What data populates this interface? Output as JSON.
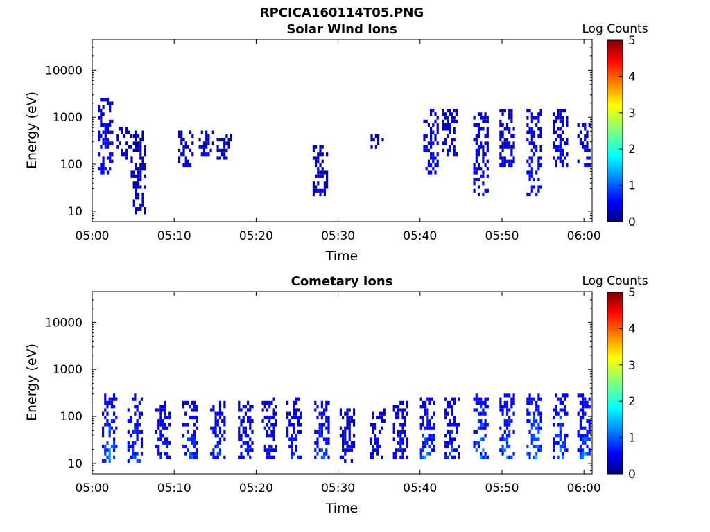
{
  "figure": {
    "title": "RPCICA160114T05.PNG"
  },
  "chart_data": [
    {
      "type": "heatmap",
      "title": "Solar Wind Ions",
      "xlabel": "Time",
      "ylabel": "Energy (eV)",
      "x_ticks": [
        "05:00",
        "05:10",
        "05:20",
        "05:30",
        "05:40",
        "05:50",
        "06:00"
      ],
      "y_ticks": [
        "10",
        "100",
        "1000",
        "10000"
      ],
      "y_scale": "log",
      "x_range": [
        "05:00",
        "06:01"
      ],
      "y_range_eV": [
        6,
        45000
      ],
      "colorbar": {
        "label": "Log Counts",
        "ticks": [
          "0",
          "1",
          "2",
          "3",
          "4",
          "5"
        ],
        "range": [
          0,
          5
        ],
        "colormap": "jet"
      },
      "bursts": [
        {
          "t_min": 1.5,
          "e_low": 60,
          "e_high": 2500,
          "peak": 1.0
        },
        {
          "t_min": 3.8,
          "e_low": 120,
          "e_high": 600,
          "peak": 0.6
        },
        {
          "t_min": 5.5,
          "e_low": 9,
          "e_high": 500,
          "peak": 0.5
        },
        {
          "t_min": 11.3,
          "e_low": 80,
          "e_high": 500,
          "peak": 0.5
        },
        {
          "t_min": 13.8,
          "e_low": 150,
          "e_high": 500,
          "peak": 0.6
        },
        {
          "t_min": 16.0,
          "e_low": 120,
          "e_high": 400,
          "peak": 0.4
        },
        {
          "t_min": 27.7,
          "e_low": 20,
          "e_high": 250,
          "peak": 0.5
        },
        {
          "t_min": 34.5,
          "e_low": 200,
          "e_high": 400,
          "peak": 0.3
        },
        {
          "t_min": 41.2,
          "e_low": 60,
          "e_high": 1500,
          "peak": 0.9
        },
        {
          "t_min": 43.5,
          "e_low": 150,
          "e_high": 1500,
          "peak": 0.8
        },
        {
          "t_min": 47.3,
          "e_low": 20,
          "e_high": 1300,
          "peak": 0.9
        },
        {
          "t_min": 50.5,
          "e_low": 80,
          "e_high": 1500,
          "peak": 0.8
        },
        {
          "t_min": 53.8,
          "e_low": 20,
          "e_high": 1500,
          "peak": 1.1
        },
        {
          "t_min": 57.0,
          "e_low": 80,
          "e_high": 1500,
          "peak": 0.9
        },
        {
          "t_min": 60.0,
          "e_low": 80,
          "e_high": 800,
          "peak": 0.8
        }
      ]
    },
    {
      "type": "heatmap",
      "title": "Cometary Ions",
      "xlabel": "Time",
      "ylabel": "Energy (eV)",
      "x_ticks": [
        "05:00",
        "05:10",
        "05:20",
        "05:30",
        "05:40",
        "05:50",
        "06:00"
      ],
      "y_ticks": [
        "10",
        "100",
        "1000",
        "10000"
      ],
      "y_scale": "log",
      "x_range": [
        "05:00",
        "06:01"
      ],
      "y_range_eV": [
        6,
        45000
      ],
      "colorbar": {
        "label": "Log Counts",
        "ticks": [
          "0",
          "1",
          "2",
          "3",
          "4",
          "5"
        ],
        "range": [
          0,
          5
        ],
        "colormap": "jet"
      },
      "bursts": [
        {
          "t_min": 2.0,
          "e_low": 10,
          "e_high": 300,
          "peak": 1.6
        },
        {
          "t_min": 5.1,
          "e_low": 10,
          "e_high": 300,
          "peak": 1.3
        },
        {
          "t_min": 8.5,
          "e_low": 12,
          "e_high": 200,
          "peak": 1.2
        },
        {
          "t_min": 11.8,
          "e_low": 12,
          "e_high": 200,
          "peak": 1.5
        },
        {
          "t_min": 15.2,
          "e_low": 12,
          "e_high": 200,
          "peak": 1.2
        },
        {
          "t_min": 18.6,
          "e_low": 12,
          "e_high": 200,
          "peak": 1.0
        },
        {
          "t_min": 21.5,
          "e_low": 12,
          "e_high": 250,
          "peak": 1.0
        },
        {
          "t_min": 24.5,
          "e_low": 12,
          "e_high": 250,
          "peak": 1.2
        },
        {
          "t_min": 27.9,
          "e_low": 12,
          "e_high": 200,
          "peak": 1.4
        },
        {
          "t_min": 31.0,
          "e_low": 10,
          "e_high": 150,
          "peak": 0.8
        },
        {
          "t_min": 34.7,
          "e_low": 12,
          "e_high": 150,
          "peak": 1.0
        },
        {
          "t_min": 37.5,
          "e_low": 12,
          "e_high": 200,
          "peak": 1.0
        },
        {
          "t_min": 40.8,
          "e_low": 12,
          "e_high": 250,
          "peak": 1.6
        },
        {
          "t_min": 43.8,
          "e_low": 12,
          "e_high": 250,
          "peak": 1.3
        },
        {
          "t_min": 47.3,
          "e_low": 12,
          "e_high": 300,
          "peak": 1.8
        },
        {
          "t_min": 50.5,
          "e_low": 12,
          "e_high": 300,
          "peak": 1.6
        },
        {
          "t_min": 53.8,
          "e_low": 12,
          "e_high": 300,
          "peak": 1.9
        },
        {
          "t_min": 57.0,
          "e_low": 12,
          "e_high": 300,
          "peak": 1.7
        },
        {
          "t_min": 60.0,
          "e_low": 12,
          "e_high": 300,
          "peak": 1.5
        }
      ]
    }
  ]
}
